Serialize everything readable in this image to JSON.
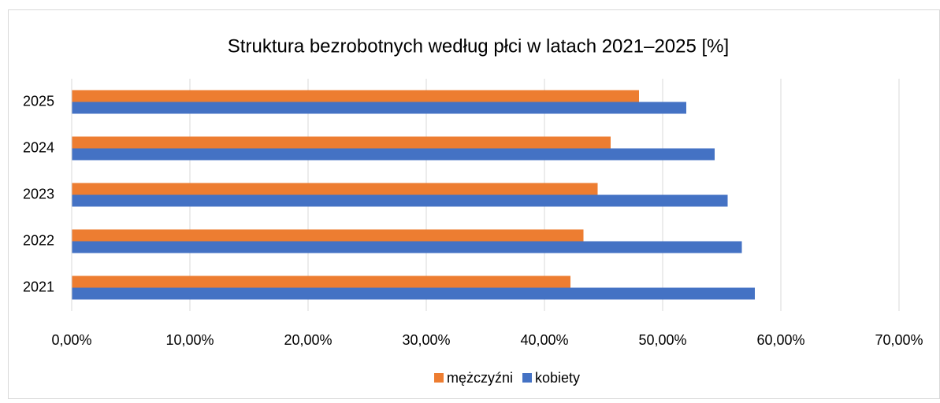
{
  "chart_data": {
    "type": "hbar",
    "title": "Struktura bezrobotnych według płci w latach 2021–2025 [%]",
    "categories": [
      "2021",
      "2022",
      "2023",
      "2024",
      "2025"
    ],
    "series": [
      {
        "name": "mężczyźni",
        "color": "#ed7d31",
        "values": [
          42.2,
          43.3,
          44.5,
          45.6,
          48.0
        ]
      },
      {
        "name": "kobiety",
        "color": "#4472c4",
        "values": [
          57.8,
          56.7,
          55.5,
          54.4,
          52.0
        ]
      }
    ],
    "xlim": [
      0,
      70
    ],
    "xticks": [
      {
        "value": 0,
        "label": "0,00%"
      },
      {
        "value": 10,
        "label": "10,00%"
      },
      {
        "value": 20,
        "label": "20,00%"
      },
      {
        "value": 30,
        "label": "30,00%"
      },
      {
        "value": 40,
        "label": "40,00%"
      },
      {
        "value": 50,
        "label": "50,00%"
      },
      {
        "value": 60,
        "label": "60,00%"
      },
      {
        "value": 70,
        "label": "70,00%"
      }
    ],
    "grid": true,
    "legend": "bottom"
  }
}
